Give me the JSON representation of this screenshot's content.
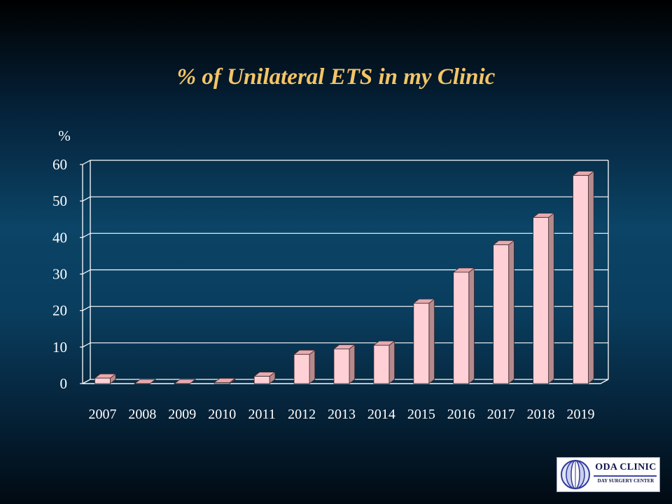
{
  "title": "% of Unilateral ETS in my Clinic",
  "logo": {
    "name": "ODA CLINIC",
    "subtitle": "DAY SURGERY CENTER"
  },
  "colors": {
    "bar_front": "#ffd1d6",
    "bar_side": "#b58a8e",
    "bar_top": "#e8aab0",
    "title": "#f3c567",
    "axis_text": "#ffffff",
    "grid": "#ffffff"
  },
  "chart_data": {
    "type": "bar",
    "title": "% of Unilateral ETS in my Clinic",
    "ylabel": "%",
    "xlabel": "",
    "categories": [
      "2007",
      "2008",
      "2009",
      "2010",
      "2011",
      "2012",
      "2013",
      "2014",
      "2015",
      "2016",
      "2017",
      "2018",
      "2019"
    ],
    "values": [
      1.5,
      0,
      0,
      0.3,
      2,
      8,
      9.5,
      10.5,
      22,
      30.5,
      38,
      45.5,
      57
    ],
    "ylim": [
      0,
      60
    ],
    "yticks": [
      "0",
      "10",
      "20",
      "30",
      "40",
      "50",
      "60"
    ],
    "grid": true,
    "legend": "none",
    "style": "3d"
  }
}
